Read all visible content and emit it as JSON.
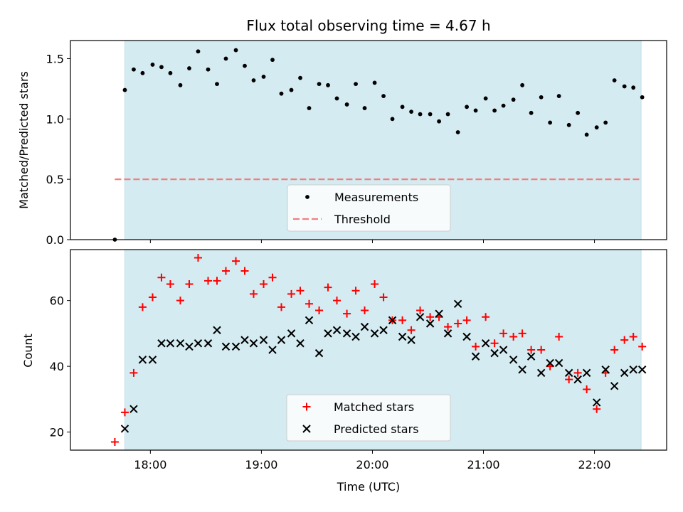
{
  "chart_data": {
    "type": "scatter",
    "title": "Flux total observing time = 4.67 h",
    "xlabel": "Time (UTC)",
    "x_unit": "hour of day (UTC)",
    "xlim": [
      17.28,
      22.65
    ],
    "observing_window": [
      17.77,
      22.42
    ],
    "shade_color": "#d4ebf1",
    "x_ticks": [
      {
        "value": 18,
        "label": "18:00"
      },
      {
        "value": 19,
        "label": "19:00"
      },
      {
        "value": 20,
        "label": "20:00"
      },
      {
        "value": 21,
        "label": "21:00"
      },
      {
        "value": 22,
        "label": "22:00"
      }
    ],
    "panels": [
      {
        "id": "top",
        "ylabel": "Matched/Predicted stars",
        "ylim": [
          0.0,
          1.65
        ],
        "y_ticks": [
          {
            "value": 0.0,
            "label": "0.0"
          },
          {
            "value": 0.5,
            "label": "0.5"
          },
          {
            "value": 1.0,
            "label": "1.0"
          },
          {
            "value": 1.5,
            "label": "1.5"
          }
        ],
        "legend": [
          "Measurements",
          "Threshold"
        ],
        "threshold": {
          "name": "Threshold",
          "y": 0.5,
          "x_range": [
            17.68,
            22.42
          ],
          "color": "#f08080",
          "style": "dashed"
        },
        "series": [
          {
            "name": "Measurements",
            "marker": "dot",
            "color": "#000000",
            "x": [
              17.68,
              17.77,
              17.85,
              17.93,
              18.02,
              18.1,
              18.18,
              18.27,
              18.35,
              18.43,
              18.52,
              18.6,
              18.68,
              18.77,
              18.85,
              18.93,
              19.02,
              19.1,
              19.18,
              19.27,
              19.35,
              19.43,
              19.52,
              19.6,
              19.68,
              19.77,
              19.85,
              19.93,
              20.02,
              20.1,
              20.18,
              20.27,
              20.35,
              20.43,
              20.52,
              20.6,
              20.68,
              20.77,
              20.85,
              20.93,
              21.02,
              21.1,
              21.18,
              21.27,
              21.35,
              21.43,
              21.52,
              21.6,
              21.68,
              21.77,
              21.85,
              21.93,
              22.02,
              22.1,
              22.18,
              22.27,
              22.35,
              22.43
            ],
            "y": [
              0.0,
              1.24,
              1.41,
              1.38,
              1.45,
              1.43,
              1.38,
              1.28,
              1.42,
              1.56,
              1.41,
              1.29,
              1.5,
              1.57,
              1.44,
              1.32,
              1.35,
              1.49,
              1.21,
              1.24,
              1.34,
              1.09,
              1.29,
              1.28,
              1.17,
              1.12,
              1.29,
              1.09,
              1.3,
              1.19,
              1.0,
              1.1,
              1.06,
              1.04,
              1.04,
              0.98,
              1.04,
              0.89,
              1.1,
              1.07,
              1.17,
              1.07,
              1.11,
              1.16,
              1.28,
              1.05,
              1.18,
              0.97,
              1.19,
              0.95,
              1.05,
              0.87,
              0.93,
              0.97,
              1.32,
              1.27,
              1.26,
              1.18
            ]
          }
        ]
      },
      {
        "id": "bottom",
        "ylabel": "Count",
        "ylim": [
          14.5,
          75.5
        ],
        "y_ticks": [
          {
            "value": 20,
            "label": "20"
          },
          {
            "value": 40,
            "label": "40"
          },
          {
            "value": 60,
            "label": "60"
          }
        ],
        "legend": [
          "Matched stars",
          "Predicted stars"
        ],
        "series": [
          {
            "name": "Matched stars",
            "marker": "plus",
            "color": "#ff0000",
            "x": [
              17.68,
              17.77,
              17.85,
              17.93,
              18.02,
              18.1,
              18.18,
              18.27,
              18.35,
              18.43,
              18.52,
              18.6,
              18.68,
              18.77,
              18.85,
              18.93,
              19.02,
              19.1,
              19.18,
              19.27,
              19.35,
              19.43,
              19.52,
              19.6,
              19.68,
              19.77,
              19.85,
              19.93,
              20.02,
              20.1,
              20.18,
              20.27,
              20.35,
              20.43,
              20.52,
              20.6,
              20.68,
              20.77,
              20.85,
              20.93,
              21.02,
              21.1,
              21.18,
              21.27,
              21.35,
              21.43,
              21.52,
              21.6,
              21.68,
              21.77,
              21.85,
              21.93,
              22.02,
              22.1,
              22.18,
              22.27,
              22.35,
              22.43
            ],
            "y": [
              17,
              26,
              38,
              58,
              61,
              67,
              65,
              60,
              65,
              73,
              66,
              66,
              69,
              72,
              69,
              62,
              65,
              67,
              58,
              62,
              63,
              59,
              57,
              64,
              60,
              56,
              63,
              57,
              65,
              61,
              54,
              54,
              51,
              57,
              55,
              55,
              52,
              53,
              54,
              46,
              55,
              47,
              50,
              49,
              50,
              45,
              45,
              40,
              49,
              36,
              38,
              33,
              27,
              38,
              45,
              48,
              49,
              46
            ]
          },
          {
            "name": "Predicted stars",
            "marker": "x",
            "color": "#000000",
            "x": [
              17.77,
              17.85,
              17.93,
              18.02,
              18.1,
              18.18,
              18.27,
              18.35,
              18.43,
              18.52,
              18.6,
              18.68,
              18.77,
              18.85,
              18.93,
              19.02,
              19.1,
              19.18,
              19.27,
              19.35,
              19.43,
              19.52,
              19.6,
              19.68,
              19.77,
              19.85,
              19.93,
              20.02,
              20.1,
              20.18,
              20.27,
              20.35,
              20.43,
              20.52,
              20.6,
              20.68,
              20.77,
              20.85,
              20.93,
              21.02,
              21.1,
              21.18,
              21.27,
              21.35,
              21.43,
              21.52,
              21.6,
              21.68,
              21.77,
              21.85,
              21.93,
              22.02,
              22.1,
              22.18,
              22.27,
              22.35,
              22.43
            ],
            "y": [
              21,
              27,
              42,
              42,
              47,
              47,
              47,
              46,
              47,
              47,
              51,
              46,
              46,
              48,
              47,
              48,
              45,
              48,
              50,
              47,
              54,
              44,
              50,
              51,
              50,
              49,
              52,
              50,
              51,
              54,
              49,
              48,
              55,
              53,
              56,
              50,
              59,
              49,
              43,
              47,
              44,
              45,
              42,
              39,
              43,
              38,
              41,
              41,
              38,
              36,
              38,
              29,
              39,
              34,
              38,
              39,
              39
            ]
          }
        ]
      }
    ]
  }
}
